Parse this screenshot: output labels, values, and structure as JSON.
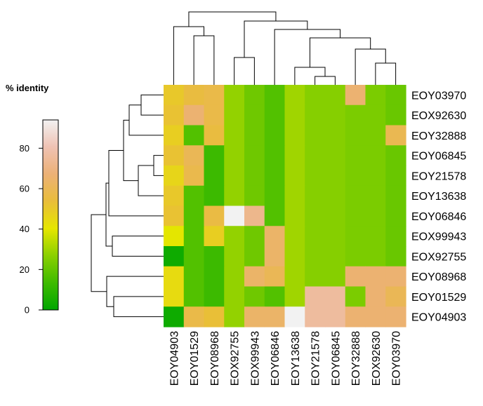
{
  "chart_data": {
    "type": "heatmap",
    "title": "",
    "legend": {
      "title": "% identity",
      "ticks": [
        0,
        20,
        40,
        60,
        80
      ],
      "range": [
        0,
        94
      ],
      "placement": "left",
      "colors": [
        "#00A600",
        "#3EBB00",
        "#8BD000",
        "#E6E600",
        "#E9BD3A",
        "#ECB176",
        "#EFC2B3",
        "#F2F2F2"
      ]
    },
    "row_labels": [
      "EOY03970",
      "EOX92630",
      "EOY32888",
      "EOY06845",
      "EOY21578",
      "EOY13638",
      "EOY06846",
      "EOX99943",
      "EOX92755",
      "EOY08968",
      "EOY01529",
      "EOY04903"
    ],
    "col_labels": [
      "EOY04903",
      "EOY01529",
      "EOY08968",
      "EOX92755",
      "EOX99943",
      "EOY06846",
      "EOY13638",
      "EOY21578",
      "EOY06845",
      "EOY32888",
      "EOX92630",
      "EOY03970"
    ],
    "values": [
      [
        50,
        55,
        57,
        28,
        22,
        17,
        30,
        26,
        26,
        66,
        24,
        21
      ],
      [
        52,
        66,
        57,
        28,
        22,
        17,
        30,
        26,
        26,
        24,
        24,
        21
      ],
      [
        48,
        17,
        55,
        28,
        22,
        17,
        30,
        26,
        26,
        24,
        24,
        59
      ],
      [
        52,
        60,
        13,
        28,
        22,
        17,
        30,
        26,
        26,
        24,
        24,
        21
      ],
      [
        46,
        58,
        13,
        28,
        22,
        17,
        30,
        26,
        26,
        24,
        24,
        21
      ],
      [
        50,
        17,
        13,
        28,
        22,
        17,
        30,
        26,
        26,
        24,
        24,
        21
      ],
      [
        52,
        17,
        56,
        94,
        72,
        17,
        30,
        26,
        26,
        24,
        24,
        21
      ],
      [
        40,
        17,
        48,
        28,
        22,
        64,
        30,
        26,
        26,
        24,
        24,
        21
      ],
      [
        3,
        17,
        13,
        28,
        22,
        64,
        30,
        26,
        26,
        24,
        24,
        21
      ],
      [
        44,
        17,
        13,
        28,
        64,
        60,
        30,
        26,
        26,
        66,
        66,
        66
      ],
      [
        44,
        17,
        13,
        28,
        22,
        17,
        30,
        76,
        76,
        24,
        66,
        60
      ],
      [
        3,
        57,
        53,
        28,
        64,
        64,
        94,
        76,
        76,
        66,
        66,
        66
      ]
    ]
  }
}
